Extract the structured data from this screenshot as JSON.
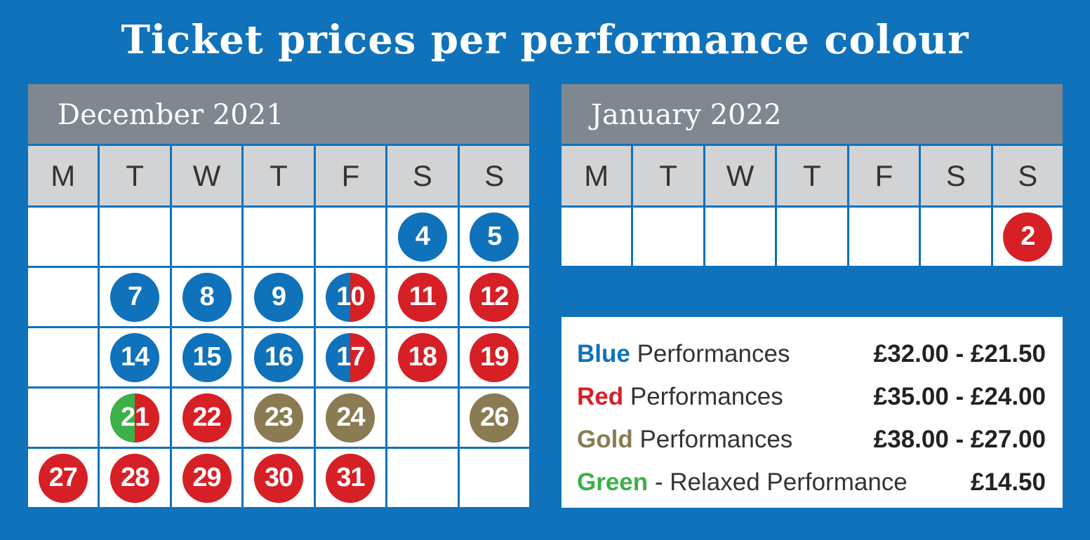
{
  "title": "Ticket prices per performance colour",
  "colors": {
    "blue": "#0f72ba",
    "red": "#d71f26",
    "gold": "#8b7b52",
    "green": "#3cb049"
  },
  "calendars": [
    {
      "month": "December 2021",
      "days": [
        "M",
        "T",
        "W",
        "T",
        "F",
        "S",
        "S"
      ],
      "weeks": [
        [
          null,
          null,
          null,
          null,
          null,
          {
            "d": "4",
            "c": [
              "blue"
            ]
          },
          {
            "d": "5",
            "c": [
              "blue"
            ]
          }
        ],
        [
          null,
          {
            "d": "7",
            "c": [
              "blue"
            ]
          },
          {
            "d": "8",
            "c": [
              "blue"
            ]
          },
          {
            "d": "9",
            "c": [
              "blue"
            ]
          },
          {
            "d": "10",
            "c": [
              "blue",
              "red"
            ]
          },
          {
            "d": "11",
            "c": [
              "red"
            ]
          },
          {
            "d": "12",
            "c": [
              "red"
            ]
          }
        ],
        [
          null,
          {
            "d": "14",
            "c": [
              "blue"
            ]
          },
          {
            "d": "15",
            "c": [
              "blue"
            ]
          },
          {
            "d": "16",
            "c": [
              "blue"
            ]
          },
          {
            "d": "17",
            "c": [
              "blue",
              "red"
            ]
          },
          {
            "d": "18",
            "c": [
              "red"
            ]
          },
          {
            "d": "19",
            "c": [
              "red"
            ]
          }
        ],
        [
          null,
          {
            "d": "21",
            "c": [
              "green",
              "red"
            ]
          },
          {
            "d": "22",
            "c": [
              "red"
            ]
          },
          {
            "d": "23",
            "c": [
              "gold"
            ]
          },
          {
            "d": "24",
            "c": [
              "gold"
            ]
          },
          null,
          {
            "d": "26",
            "c": [
              "gold"
            ]
          }
        ],
        [
          {
            "d": "27",
            "c": [
              "red"
            ]
          },
          {
            "d": "28",
            "c": [
              "red"
            ]
          },
          {
            "d": "29",
            "c": [
              "red"
            ]
          },
          {
            "d": "30",
            "c": [
              "red"
            ]
          },
          {
            "d": "31",
            "c": [
              "red"
            ]
          },
          null,
          null
        ]
      ]
    },
    {
      "month": "January 2022",
      "days": [
        "M",
        "T",
        "W",
        "T",
        "F",
        "S",
        "S"
      ],
      "weeks": [
        [
          null,
          null,
          null,
          null,
          null,
          null,
          {
            "d": "2",
            "c": [
              "red"
            ]
          }
        ]
      ]
    }
  ],
  "legend": [
    {
      "name": "Blue",
      "color": "blue",
      "label": " Performances",
      "price": "£32.00 - £21.50"
    },
    {
      "name": "Red",
      "color": "red",
      "label": " Performances",
      "price": "£35.00 - £24.00"
    },
    {
      "name": "Gold",
      "color": "gold",
      "label": " Performances",
      "price": "£38.00 - £27.00"
    },
    {
      "name": "Green",
      "color": "green",
      "label": " - Relaxed Performance",
      "price": "£14.50"
    }
  ]
}
